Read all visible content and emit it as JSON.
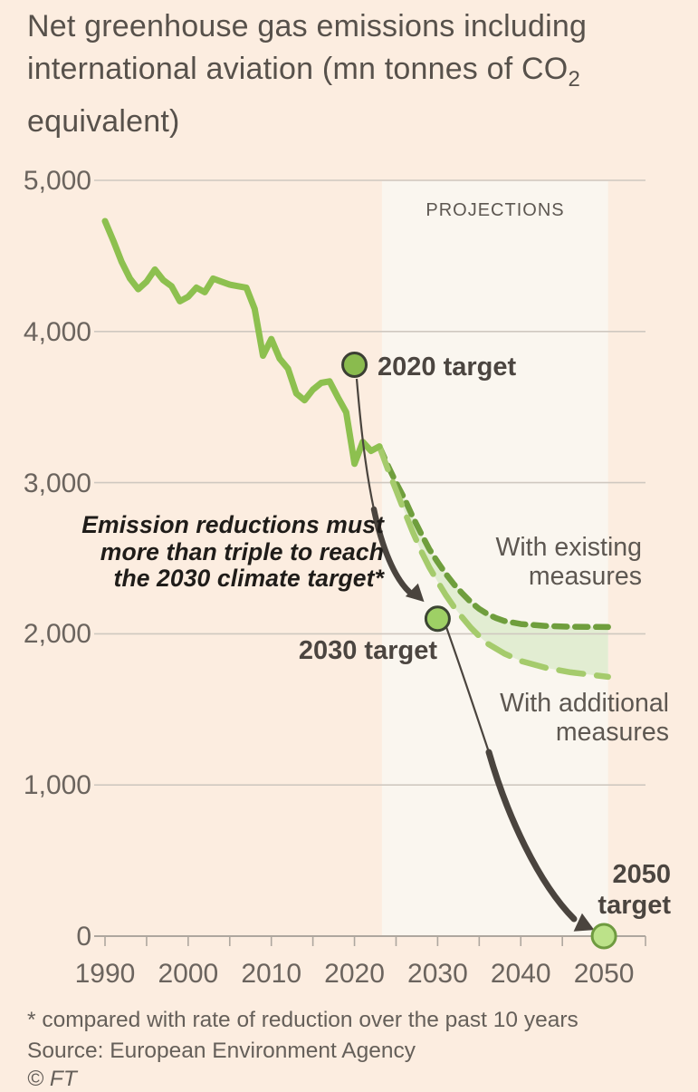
{
  "title": {
    "pre_sub": "Net greenhouse gas emissions including international aviation (mn tonnes of CO",
    "subscript": "2",
    "post_sub": " equivalent)"
  },
  "chart": {
    "projections_label": "PROJECTIONS",
    "annotation": {
      "lines": [
        "Emission reductions must",
        "more than triple to reach",
        "the 2030 climate target*"
      ]
    },
    "target_labels": {
      "t2020": "2020 target",
      "t2030": "2030 target",
      "t2050_lines": [
        "2050",
        "target"
      ]
    },
    "legend": {
      "existing_lines": [
        "With existing",
        "measures"
      ],
      "additional_lines": [
        "With additional",
        "measures"
      ]
    }
  },
  "chart_data": {
    "type": "line",
    "title": "Net greenhouse gas emissions including international aviation (mn tonnes of CO2 equivalent)",
    "xlabel": "",
    "ylabel": "",
    "xlim": [
      1990,
      2055
    ],
    "ylim": [
      0,
      5000
    ],
    "grid": "horizontal",
    "x_ticks_labeled": [
      1990,
      2000,
      2010,
      2020,
      2030,
      2040,
      2050
    ],
    "x_ticks_minor_step": 5,
    "y_ticks": [
      0,
      1000,
      2000,
      3000,
      4000,
      5000
    ],
    "y_tick_labels": [
      "0",
      "1,000",
      "2,000",
      "3,000",
      "4,000",
      "5,000"
    ],
    "projection_region": {
      "label": "PROJECTIONS",
      "x_start": 2023.3,
      "x_end": 2050.5
    },
    "series": [
      {
        "name": "historical",
        "style": "solid",
        "x": [
          1990,
          1991,
          1992,
          1993,
          1994,
          1995,
          1996,
          1997,
          1998,
          1999,
          2000,
          2001,
          2002,
          2003,
          2004,
          2005,
          2006,
          2007,
          2008,
          2009,
          2010,
          2011,
          2012,
          2013,
          2014,
          2015,
          2016,
          2017,
          2018,
          2019,
          2020,
          2021,
          2022,
          2023
        ],
        "y": [
          4730,
          4600,
          4460,
          4350,
          4280,
          4330,
          4410,
          4340,
          4300,
          4200,
          4230,
          4290,
          4260,
          4350,
          4330,
          4310,
          4300,
          4290,
          4150,
          3840,
          3950,
          3820,
          3755,
          3590,
          3545,
          3615,
          3660,
          3670,
          3565,
          3465,
          3125,
          3270,
          3210,
          3240
        ]
      },
      {
        "name": "with_existing_measures",
        "style": "dashed-short",
        "x": [
          2023,
          2024,
          2025,
          2026,
          2027,
          2028,
          2029,
          2030,
          2031,
          2032,
          2033,
          2034,
          2035,
          2036,
          2037,
          2038,
          2040,
          2043,
          2046,
          2050.5
        ],
        "y": [
          3240,
          3115,
          3000,
          2895,
          2775,
          2665,
          2560,
          2475,
          2395,
          2325,
          2265,
          2210,
          2165,
          2130,
          2105,
          2085,
          2065,
          2052,
          2047,
          2045
        ]
      },
      {
        "name": "with_additional_measures",
        "style": "dashed-long",
        "x": [
          2023,
          2024,
          2025,
          2026,
          2027,
          2028,
          2029,
          2030,
          2031,
          2032,
          2033,
          2034,
          2035,
          2036,
          2038,
          2040,
          2043,
          2046,
          2050.5
        ],
        "y": [
          3240,
          3090,
          2950,
          2810,
          2675,
          2550,
          2440,
          2345,
          2255,
          2175,
          2105,
          2040,
          1985,
          1935,
          1870,
          1820,
          1775,
          1745,
          1715
        ]
      }
    ],
    "targets": [
      {
        "name": "2020 target",
        "year": 2020,
        "value": 3780
      },
      {
        "name": "2030 target",
        "year": 2030,
        "value": 2100
      },
      {
        "name": "2050 target",
        "year": 2050,
        "value": 0
      }
    ]
  },
  "footer": {
    "footnote": "* compared with rate of reduction over the past 10 years",
    "source": "Source: European Environment Agency",
    "credit": "© FT"
  },
  "colors": {
    "background": "#fcede0",
    "projection_band": "#faf6ef",
    "historical_line": "#8dc04f",
    "existing_line": "#6f9e3d",
    "additional_line": "#a5cb6c",
    "band_fill": "#e2edd2",
    "gridline": "#cfc8c0",
    "axis_line": "#aea79f",
    "arrow": "#4a443e",
    "dot_2020_fill": "#8abb4e",
    "dot_2020_stroke": "#3b3e33",
    "dot_2030_fill": "#9ed065",
    "dot_2030_stroke": "#3c4533",
    "dot_2050_fill": "#bce289",
    "dot_2050_stroke": "#6f9b40"
  }
}
